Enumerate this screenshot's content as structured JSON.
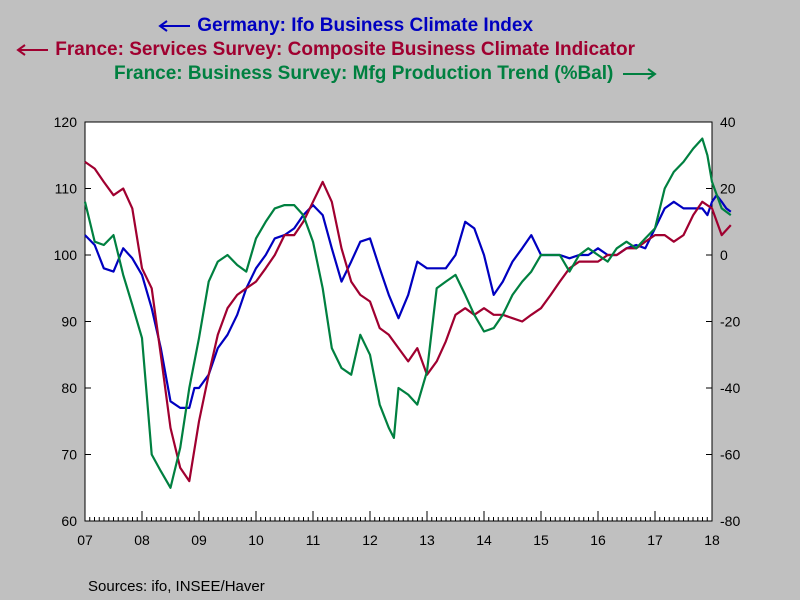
{
  "sources": "Sources:  ifo, INSEE/Haver",
  "colors": {
    "germany": "#0000c0",
    "france_services": "#a00030",
    "france_mfg": "#008040",
    "background": "#c0c0c0",
    "plot": "#ffffff"
  },
  "chart_data": {
    "type": "line",
    "x_ticks": [
      "07",
      "08",
      "09",
      "10",
      "11",
      "12",
      "13",
      "14",
      "15",
      "16",
      "17",
      "18"
    ],
    "x_range": [
      2007.0,
      2018.0
    ],
    "y_left": {
      "range": [
        60,
        120
      ],
      "ticks": [
        60,
        70,
        80,
        90,
        100,
        110,
        120
      ]
    },
    "y_right": {
      "range": [
        -80,
        40
      ],
      "ticks": [
        -80,
        -60,
        -40,
        -20,
        0,
        20,
        40
      ]
    },
    "grid": false,
    "series": [
      {
        "name": "Germany: Ifo Business Climate Index",
        "axis": "left",
        "legend_arrow": "left",
        "color": "#0000c0",
        "x": [
          2007.0,
          2007.17,
          2007.33,
          2007.5,
          2007.67,
          2007.83,
          2008.0,
          2008.17,
          2008.33,
          2008.5,
          2008.67,
          2008.83,
          2008.92,
          2009.0,
          2009.17,
          2009.33,
          2009.5,
          2009.67,
          2009.83,
          2010.0,
          2010.17,
          2010.33,
          2010.5,
          2010.67,
          2010.83,
          2011.0,
          2011.17,
          2011.33,
          2011.5,
          2011.67,
          2011.83,
          2012.0,
          2012.17,
          2012.33,
          2012.5,
          2012.67,
          2012.83,
          2013.0,
          2013.17,
          2013.33,
          2013.5,
          2013.67,
          2013.83,
          2014.0,
          2014.17,
          2014.33,
          2014.5,
          2014.67,
          2014.83,
          2015.0,
          2015.17,
          2015.33,
          2015.5,
          2015.67,
          2015.83,
          2016.0,
          2016.17,
          2016.33,
          2016.5,
          2016.67,
          2016.83,
          2017.0,
          2017.17,
          2017.33,
          2017.5,
          2017.67,
          2017.83,
          2017.92,
          2018.0,
          2018.08,
          2018.17,
          2018.25,
          2018.33
        ],
        "values": [
          103,
          101.5,
          98,
          97.5,
          101,
          99.5,
          97,
          92,
          86,
          78,
          77,
          77,
          80,
          80,
          82,
          86,
          88,
          91,
          95,
          98,
          100,
          102.5,
          103,
          104,
          106,
          107.5,
          106,
          101,
          96,
          99,
          102,
          102.5,
          98,
          94,
          90.5,
          94,
          99,
          98,
          98,
          98,
          100,
          105,
          104,
          100,
          94,
          96,
          99,
          101,
          103,
          100,
          100,
          100,
          99.5,
          100,
          100,
          101,
          100,
          100,
          101,
          101.5,
          101,
          104,
          107,
          108,
          107,
          107,
          107,
          106,
          108,
          109,
          108,
          107,
          106.5
        ]
      },
      {
        "name": "France: Services Survey: Composite Business Climate Indicator",
        "axis": "left",
        "legend_arrow": "left",
        "color": "#a00030",
        "x": [
          2007.0,
          2007.17,
          2007.33,
          2007.5,
          2007.67,
          2007.83,
          2008.0,
          2008.17,
          2008.33,
          2008.5,
          2008.67,
          2008.83,
          2009.0,
          2009.17,
          2009.33,
          2009.5,
          2009.67,
          2009.83,
          2010.0,
          2010.17,
          2010.33,
          2010.5,
          2010.67,
          2010.83,
          2011.0,
          2011.17,
          2011.33,
          2011.5,
          2011.67,
          2011.83,
          2012.0,
          2012.17,
          2012.33,
          2012.5,
          2012.67,
          2012.83,
          2013.0,
          2013.17,
          2013.33,
          2013.5,
          2013.67,
          2013.83,
          2014.0,
          2014.17,
          2014.33,
          2014.5,
          2014.67,
          2014.83,
          2015.0,
          2015.17,
          2015.33,
          2015.5,
          2015.67,
          2015.83,
          2016.0,
          2016.17,
          2016.33,
          2016.5,
          2016.67,
          2016.83,
          2017.0,
          2017.17,
          2017.33,
          2017.5,
          2017.67,
          2017.83,
          2018.0,
          2018.17,
          2018.33
        ],
        "values": [
          114,
          113,
          111,
          109,
          110,
          107,
          98,
          95,
          85,
          74,
          68,
          66,
          75,
          82,
          88,
          92,
          94,
          95,
          96,
          98,
          100,
          103,
          103,
          105,
          108,
          111,
          108,
          101,
          96,
          94,
          93,
          89,
          88,
          86,
          84,
          86,
          82,
          84,
          87,
          91,
          92,
          91,
          92,
          91,
          91,
          90.5,
          90,
          91,
          92,
          94,
          96,
          98,
          99,
          99,
          99,
          100,
          100,
          101,
          101,
          102,
          103,
          103,
          102,
          103,
          106,
          108,
          107,
          103,
          104.5
        ]
      },
      {
        "name": "France: Business Survey: Mfg Production Trend (%Bal)",
        "axis": "right",
        "legend_arrow": "right",
        "color": "#008040",
        "x": [
          2007.0,
          2007.17,
          2007.33,
          2007.5,
          2007.67,
          2007.83,
          2008.0,
          2008.17,
          2008.33,
          2008.5,
          2008.67,
          2008.83,
          2009.0,
          2009.17,
          2009.33,
          2009.5,
          2009.67,
          2009.83,
          2010.0,
          2010.17,
          2010.33,
          2010.5,
          2010.67,
          2010.83,
          2011.0,
          2011.17,
          2011.33,
          2011.5,
          2011.67,
          2011.83,
          2012.0,
          2012.17,
          2012.33,
          2012.42,
          2012.5,
          2012.67,
          2012.83,
          2013.0,
          2013.17,
          2013.33,
          2013.5,
          2013.67,
          2013.83,
          2014.0,
          2014.17,
          2014.33,
          2014.5,
          2014.67,
          2014.83,
          2015.0,
          2015.17,
          2015.33,
          2015.5,
          2015.67,
          2015.83,
          2016.0,
          2016.17,
          2016.33,
          2016.5,
          2016.67,
          2016.83,
          2017.0,
          2017.17,
          2017.33,
          2017.5,
          2017.67,
          2017.83,
          2017.92,
          2018.0,
          2018.17,
          2018.33
        ],
        "values": [
          16,
          4,
          3,
          6,
          -6,
          -15,
          -25,
          -60,
          -65,
          -70,
          -58,
          -40,
          -25,
          -8,
          -2,
          0,
          -3,
          -5,
          5,
          10,
          14,
          15,
          15,
          12,
          4,
          -10,
          -28,
          -34,
          -36,
          -24,
          -30,
          -45,
          -52,
          -55,
          -40,
          -42,
          -45,
          -35,
          -10,
          -8,
          -6,
          -12,
          -18,
          -23,
          -22,
          -18,
          -12,
          -8,
          -5,
          0,
          0,
          0,
          -5,
          0,
          2,
          0,
          -2,
          2,
          4,
          2,
          5,
          8,
          20,
          25,
          28,
          32,
          35,
          30,
          22,
          14,
          12
        ]
      }
    ]
  }
}
